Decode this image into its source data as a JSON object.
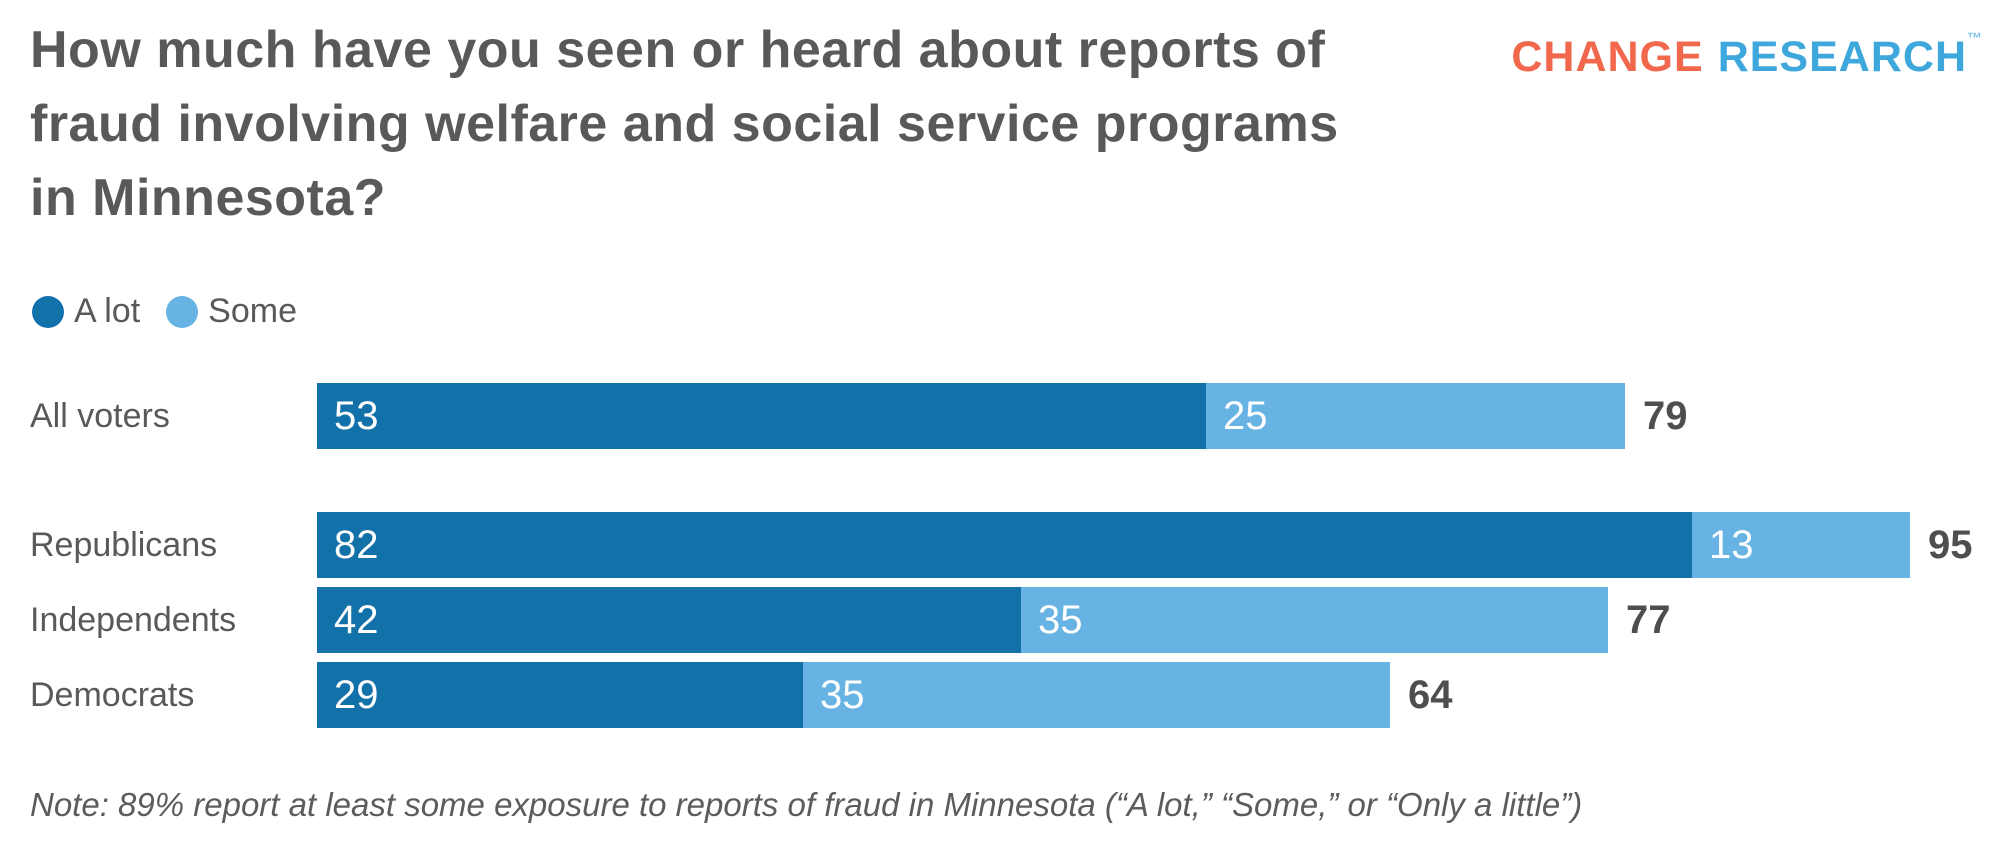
{
  "header": {
    "title_lines": [
      "How much have you seen or heard about reports of",
      "fraud involving welfare and social service programs",
      "in Minnesota?"
    ],
    "logo": {
      "part1": "CHANGE",
      "part2": "RESEARCH",
      "trademark": "™",
      "part1_color": "#F2684C",
      "part2_color": "#3EA8DD"
    }
  },
  "legend": {
    "items": [
      {
        "label": "A lot",
        "color": "#1371A9"
      },
      {
        "label": "Some",
        "color": "#67B3E3"
      }
    ]
  },
  "chart_data": {
    "type": "bar",
    "orientation": "horizontal",
    "stacked": true,
    "categories": [
      "All voters",
      "Republicans",
      "Independents",
      "Democrats"
    ],
    "series": [
      {
        "name": "A lot",
        "color": "#1371A9",
        "values": [
          53,
          82,
          42,
          29
        ]
      },
      {
        "name": "Some",
        "color": "#67B3E3",
        "values": [
          25,
          13,
          35,
          35
        ]
      }
    ],
    "totals": [
      79,
      95,
      77,
      64
    ],
    "xlim": [
      0,
      95
    ],
    "value_labels": "inside-left",
    "total_labels": "right-of-bar",
    "legend_position": "top-left",
    "grid": false,
    "group_break_after_index": 0
  },
  "note": "Note: 89% report at least some exposure to reports of fraud in Minnesota (“A lot,” “Some,” or “Only a little”)"
}
